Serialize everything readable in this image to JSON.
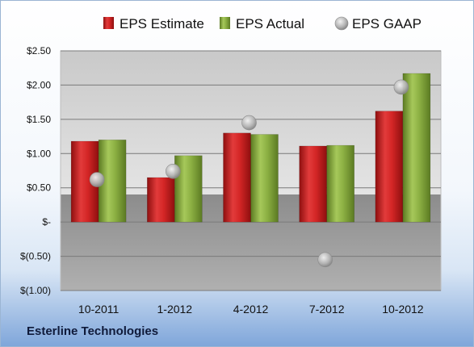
{
  "chart_data": {
    "type": "bar",
    "categories": [
      "10-2011",
      "1-2012",
      "4-2012",
      "7-2012",
      "10-2012"
    ],
    "series": [
      {
        "name": "EPS Estimate",
        "kind": "bar",
        "color": "#cc1f1f",
        "values": [
          1.18,
          0.65,
          1.3,
          1.11,
          1.62
        ]
      },
      {
        "name": "EPS Actual",
        "kind": "bar",
        "color": "#7fa63a",
        "values": [
          1.2,
          0.97,
          1.28,
          1.12,
          2.17
        ]
      },
      {
        "name": "EPS GAAP",
        "kind": "marker",
        "color": "#a9a9a9",
        "values": [
          0.62,
          0.74,
          1.45,
          -0.55,
          1.97
        ]
      }
    ],
    "y_tick_labels": [
      "$2.50",
      "$2.00",
      "$1.50",
      "$1.00",
      "$0.50",
      "$-",
      "$(0.50)",
      "$(1.00)"
    ],
    "y_ticks": [
      2.5,
      2.0,
      1.5,
      1.0,
      0.5,
      0,
      -0.5,
      -1.0
    ],
    "ylim": [
      -1.0,
      2.5
    ],
    "grid": true,
    "legend_position": "top"
  },
  "footer": {
    "company": "Esterline Technologies"
  }
}
